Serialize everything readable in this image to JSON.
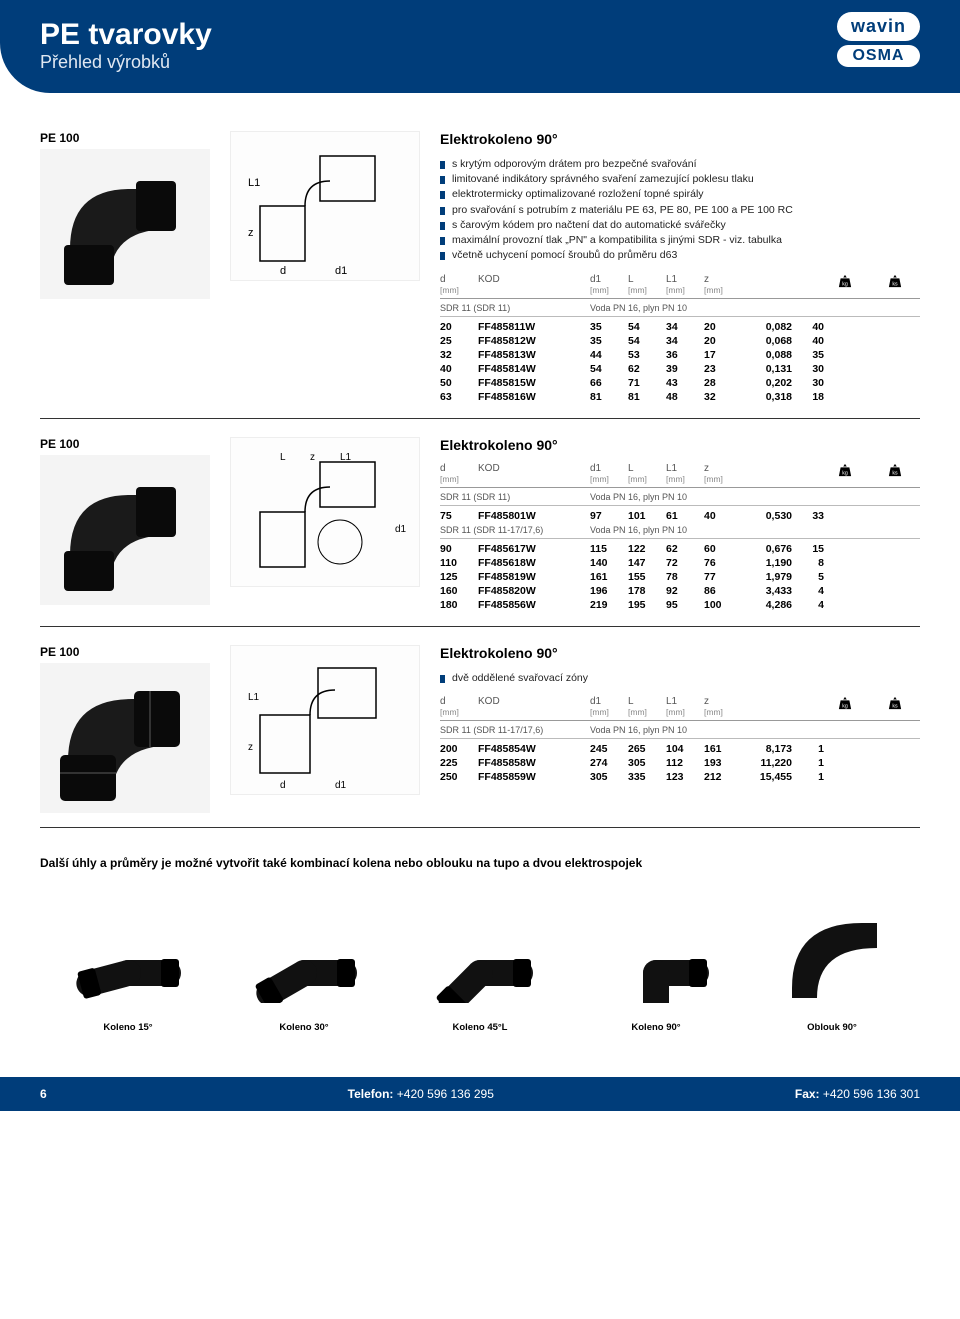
{
  "header": {
    "title": "PE tvarovky",
    "subtitle": "Přehled výrobků",
    "logo_top": "wavin",
    "logo_bottom": "OSMA"
  },
  "sections": [
    {
      "pe_label": "PE 100",
      "product_title": "Elektrokoleno 90°",
      "bullets": [
        "s krytým odporovým drátem pro bezpečné svařování",
        "limitované indikátory správného svaření zamezující poklesu tlaku",
        "elektrotermicky optimalizované rozložení topné spirály",
        "pro svařování s potrubím z materiálu PE 63, PE 80, PE 100 a PE 100 RC",
        "s čarovým kódem pro načtení dat do automatické svářečky",
        "maximální provozní tlak „PN\" a kompatibilita s jinými SDR - viz. tabulka",
        "včetně uchycení pomocí šroubů do průměru d63"
      ],
      "head": {
        "d": "d",
        "d_unit": "[mm]",
        "code": "KÓD",
        "d1": "d1",
        "d1_unit": "[mm]",
        "L": "L",
        "L_unit": "[mm]",
        "L1": "L1",
        "L1_unit": "[mm]",
        "z": "z",
        "z_unit": "[mm]"
      },
      "note_left": "SDR 11 (SDR 11)",
      "note_right": "Voda PN 16, plyn PN 10",
      "rows": [
        {
          "d": "20",
          "code": "FF485811W",
          "d1": "35",
          "L": "54",
          "L1": "34",
          "z": "20",
          "w": "0,082",
          "q": "40"
        },
        {
          "d": "25",
          "code": "FF485812W",
          "d1": "35",
          "L": "54",
          "L1": "34",
          "z": "20",
          "w": "0,068",
          "q": "40"
        },
        {
          "d": "32",
          "code": "FF485813W",
          "d1": "44",
          "L": "53",
          "L1": "36",
          "z": "17",
          "w": "0,088",
          "q": "35"
        },
        {
          "d": "40",
          "code": "FF485814W",
          "d1": "54",
          "L": "62",
          "L1": "39",
          "z": "23",
          "w": "0,131",
          "q": "30"
        },
        {
          "d": "50",
          "code": "FF485815W",
          "d1": "66",
          "L": "71",
          "L1": "43",
          "z": "28",
          "w": "0,202",
          "q": "30"
        },
        {
          "d": "63",
          "code": "FF485816W",
          "d1": "81",
          "L": "81",
          "L1": "48",
          "z": "32",
          "w": "0,318",
          "q": "18"
        }
      ]
    },
    {
      "pe_label": "PE 100",
      "product_title": "Elektrokoleno 90°",
      "bullets": [],
      "head": {
        "d": "d",
        "d_unit": "[mm]",
        "code": "KÓD",
        "d1": "d1",
        "d1_unit": "[mm]",
        "L": "L",
        "L_unit": "[mm]",
        "L1": "L1",
        "L1_unit": "[mm]",
        "z": "z",
        "z_unit": "[mm]"
      },
      "groups": [
        {
          "note_left": "SDR 11 (SDR 11)",
          "note_right": "Voda PN 16, plyn PN 10",
          "rows": [
            {
              "d": "75",
              "code": "FF485801W",
              "d1": "97",
              "L": "101",
              "L1": "61",
              "z": "40",
              "w": "0,530",
              "q": "33"
            }
          ]
        },
        {
          "note_left": "SDR 11 (SDR 11-17/17,6)",
          "note_right": "Voda PN 16, plyn PN 10",
          "rows": [
            {
              "d": "90",
              "code": "FF485617W",
              "d1": "115",
              "L": "122",
              "L1": "62",
              "z": "60",
              "w": "0,676",
              "q": "15"
            },
            {
              "d": "110",
              "code": "FF485618W",
              "d1": "140",
              "L": "147",
              "L1": "72",
              "z": "76",
              "w": "1,190",
              "q": "8"
            },
            {
              "d": "125",
              "code": "FF485819W",
              "d1": "161",
              "L": "155",
              "L1": "78",
              "z": "77",
              "w": "1,979",
              "q": "5"
            },
            {
              "d": "160",
              "code": "FF485820W",
              "d1": "196",
              "L": "178",
              "L1": "92",
              "z": "86",
              "w": "3,433",
              "q": "4"
            },
            {
              "d": "180",
              "code": "FF485856W",
              "d1": "219",
              "L": "195",
              "L1": "95",
              "z": "100",
              "w": "4,286",
              "q": "4"
            }
          ]
        }
      ]
    },
    {
      "pe_label": "PE 100",
      "product_title": "Elektrokoleno 90°",
      "bullets": [
        "dvě oddělené svařovací zóny"
      ],
      "head": {
        "d": "d",
        "d_unit": "[mm]",
        "code": "KÓD",
        "d1": "d1",
        "d1_unit": "[mm]",
        "L": "L",
        "L_unit": "[mm]",
        "L1": "L1",
        "L1_unit": "[mm]",
        "z": "z",
        "z_unit": "[mm]"
      },
      "note_left": "SDR 11 (SDR 11-17/17,6)",
      "note_right": "Voda PN 16, plyn PN 10",
      "rows": [
        {
          "d": "200",
          "code": "FF485854W",
          "d1": "245",
          "L": "265",
          "L1": "104",
          "z": "161",
          "w": "8,173",
          "q": "1"
        },
        {
          "d": "225",
          "code": "FF485858W",
          "d1": "274",
          "L": "305",
          "L1": "112",
          "z": "193",
          "w": "11,220",
          "q": "1"
        },
        {
          "d": "250",
          "code": "FF485859W",
          "d1": "305",
          "L": "335",
          "L1": "123",
          "z": "212",
          "w": "15,455",
          "q": "1"
        }
      ]
    }
  ],
  "combo_note": "Další úhly a průměry je možné vytvořit také kombinací kolena nebo oblouku na tupo a dvou elektrospojek",
  "combo_items": [
    {
      "label": "Koleno 15°",
      "angle": 15
    },
    {
      "label": "Koleno 30°",
      "angle": 30
    },
    {
      "label": "Koleno 45°L",
      "angle": 45
    },
    {
      "label": "Koleno 90°",
      "angle": 90
    },
    {
      "label": "Oblouk 90°",
      "angle": 90
    }
  ],
  "footer": {
    "page": "6",
    "tel_label": "Telefon:",
    "tel": "+420 596 136 295",
    "fax_label": "Fax:",
    "fax": "+420 596 136 301"
  },
  "colors": {
    "brand": "#003d7a"
  }
}
